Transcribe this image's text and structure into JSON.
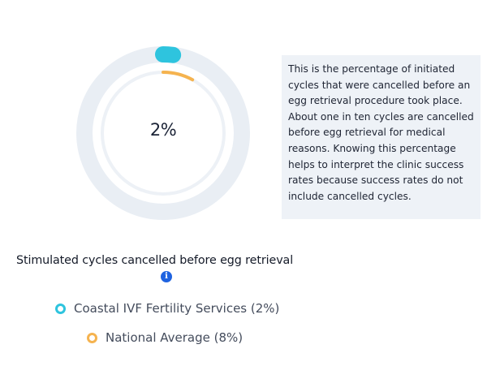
{
  "chart_data": {
    "type": "radial-progress",
    "title": "Stimulated cycles cancelled before egg retrieval",
    "center_label": "2%",
    "series": [
      {
        "name": "Coastal IVF Fertility Services",
        "value": 2,
        "unit": "%",
        "color": "#2ec4de",
        "ring": "outer"
      },
      {
        "name": "National Average",
        "value": 8,
        "unit": "%",
        "color": "#f5b34f",
        "ring": "inner"
      }
    ],
    "range": [
      0,
      100
    ],
    "track_color": "#e9eef4"
  },
  "chart": {
    "center_label": "2%"
  },
  "description": "This is the percentage of initiated cycles that were cancelled before an egg retrieval procedure took place. About one in ten cycles are cancelled before egg retrieval for medical reasons. Knowing this percentage helps to interpret the clinic success rates because success rates do not include cancelled cycles.",
  "metric_title": "Stimulated cycles cancelled before egg retrieval",
  "info_icon": "i",
  "legend": [
    {
      "label": "Coastal IVF Fertility Services (2%)",
      "color": "#2ec4de"
    },
    {
      "label": "National Average (8%)",
      "color": "#f5b34f"
    }
  ]
}
